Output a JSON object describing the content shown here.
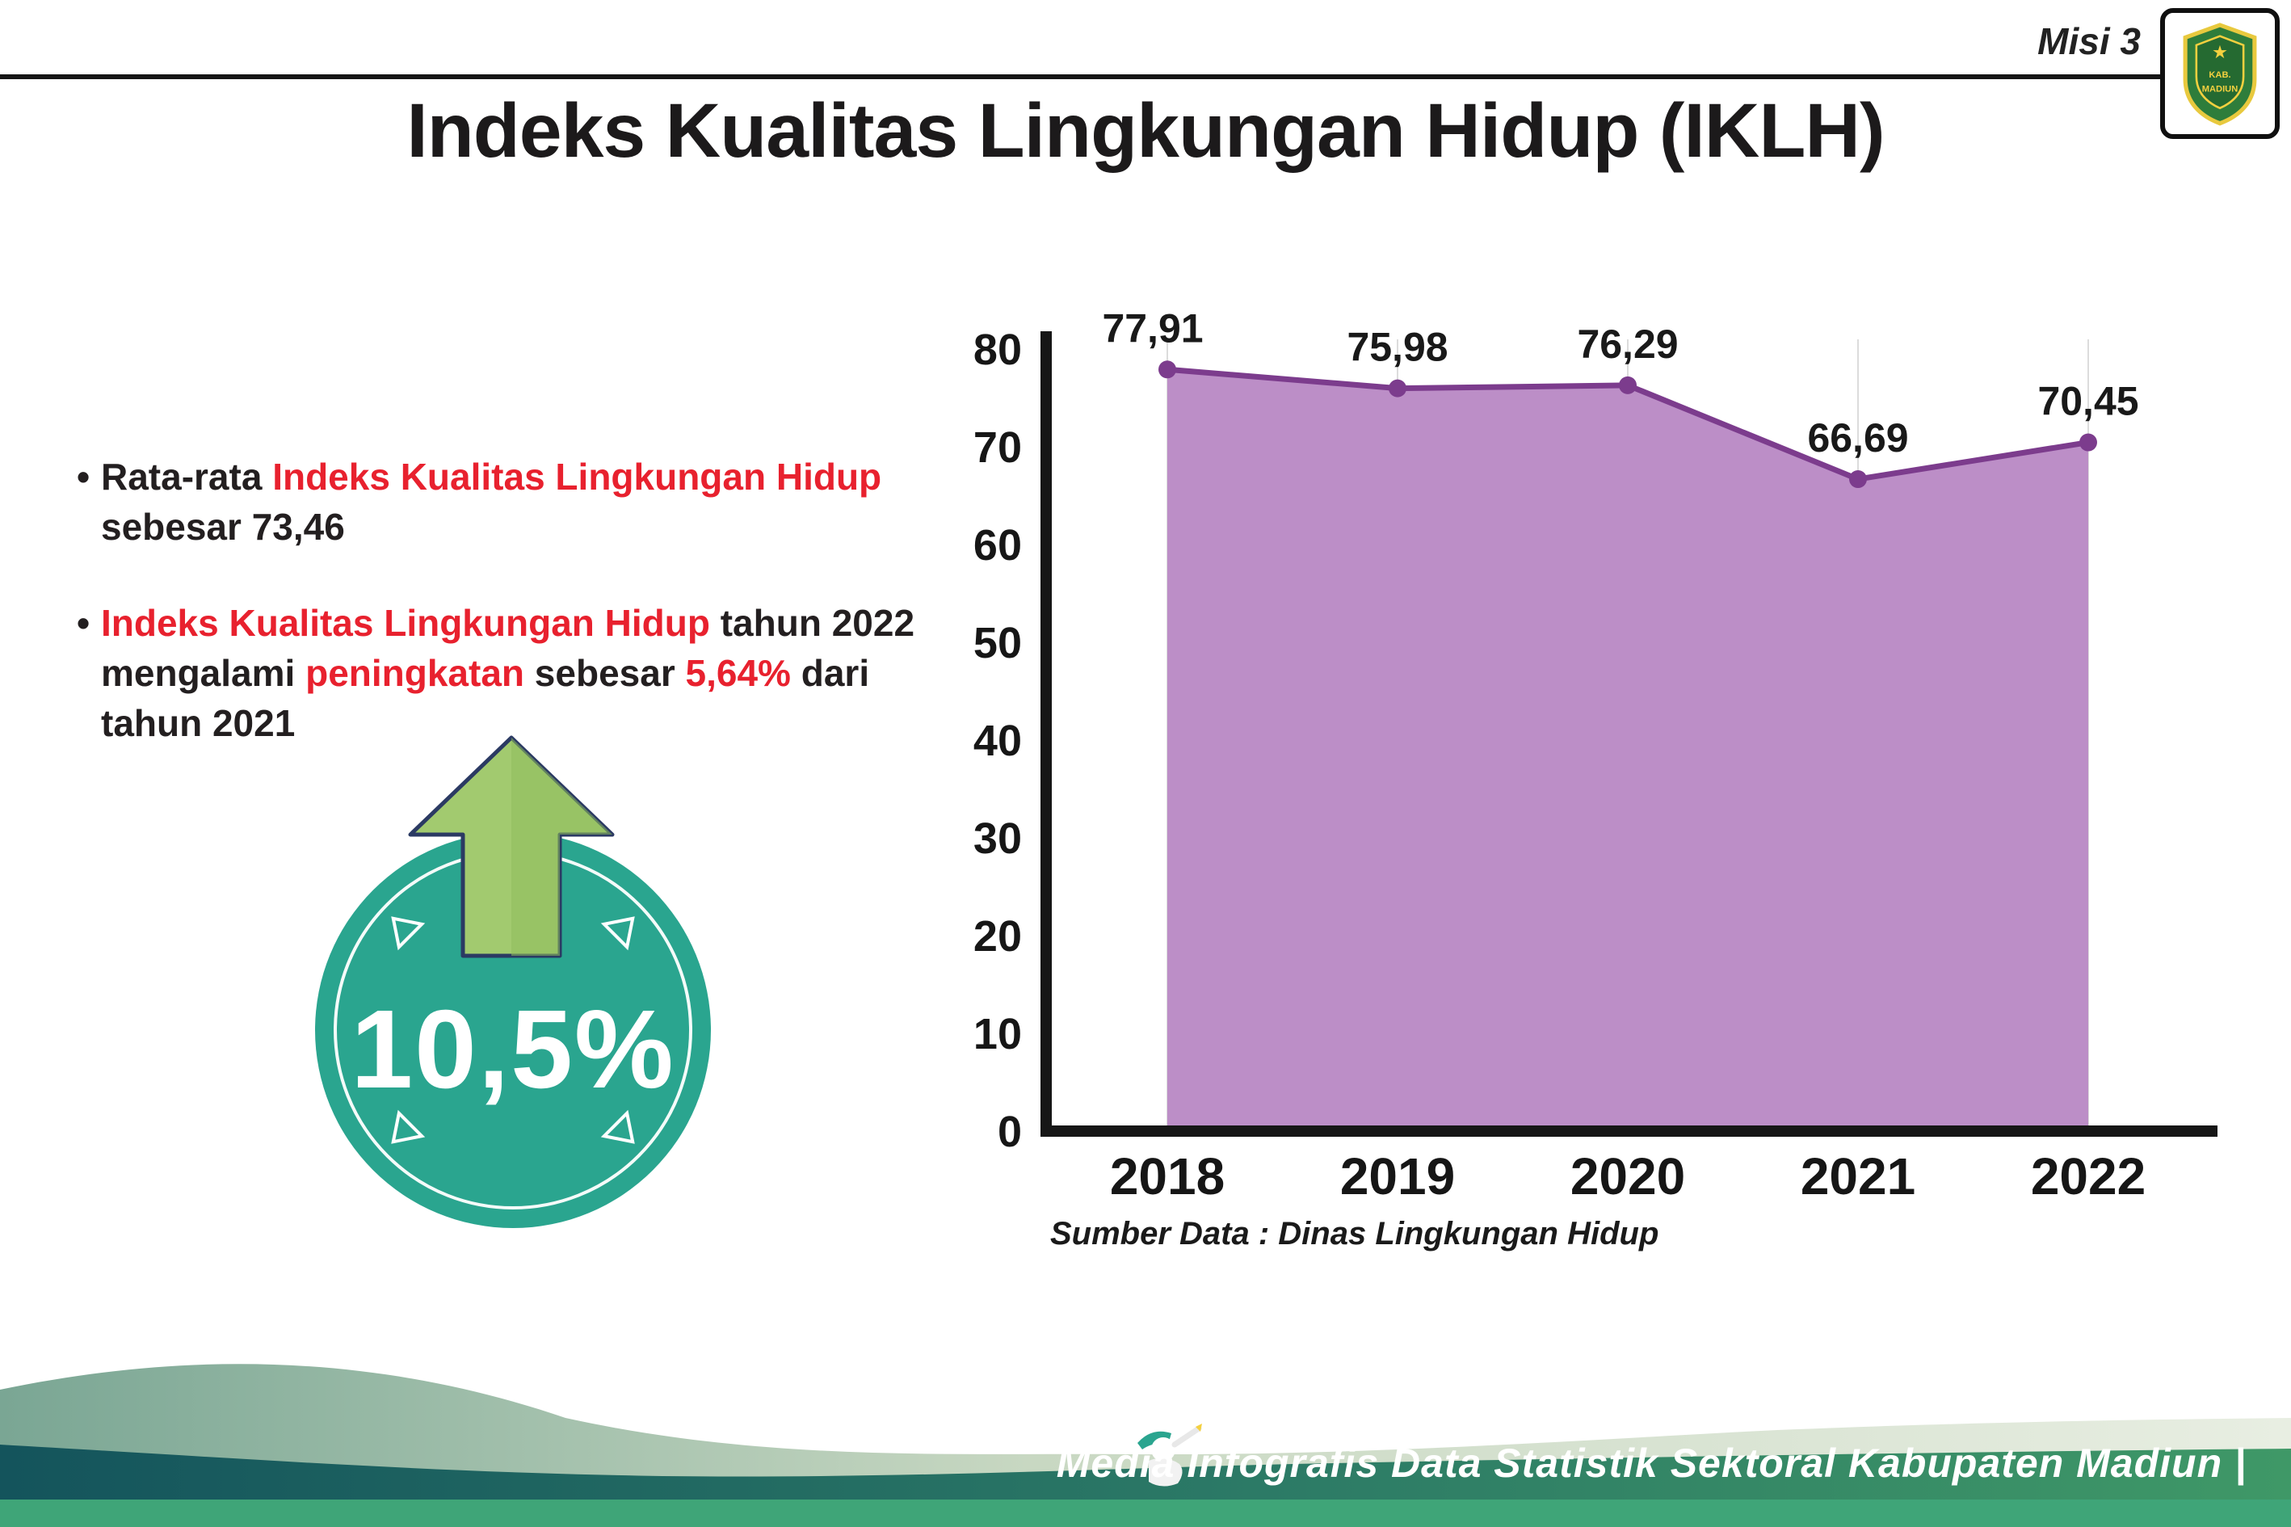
{
  "header": {
    "misi": "Misi 3",
    "title": "Indeks Kualitas Lingkungan Hidup (IKLH)",
    "logo_top_text": "KABUPATEN",
    "logo_bottom_text": "MADIUN"
  },
  "bullets_meta": {
    "marker": "•"
  },
  "bullets": [
    {
      "segments": [
        {
          "t": "Rata-rata ",
          "c": "dark"
        },
        {
          "t": "Indeks Kualitas Lingkungan Hidup",
          "c": "red"
        },
        {
          "t": " sebesar 73,46",
          "c": "dark"
        }
      ]
    },
    {
      "segments": [
        {
          "t": "Indeks Kualitas Lingkungan Hidup",
          "c": "red"
        },
        {
          "t": " tahun 2022 mengalami ",
          "c": "dark"
        },
        {
          "t": "peningkatan",
          "c": "red"
        },
        {
          "t": " sebesar ",
          "c": "dark"
        },
        {
          "t": "5,64%",
          "c": "red"
        },
        {
          "t": " dari tahun 2021",
          "c": "dark"
        }
      ]
    }
  ],
  "badge": {
    "value": "10,5%"
  },
  "chart_data": {
    "type": "area",
    "title": "",
    "categories": [
      "2018",
      "2019",
      "2020",
      "2021",
      "2022"
    ],
    "values": [
      77.91,
      75.98,
      76.29,
      66.69,
      70.45
    ],
    "value_labels": [
      "77,91",
      "75,98",
      "76,29",
      "66,69",
      "70,45"
    ],
    "ylim": [
      0,
      80
    ],
    "yticks": [
      0,
      10,
      20,
      30,
      40,
      50,
      60,
      70,
      80
    ],
    "grid": true,
    "legend": "none",
    "source": "Sumber Data : Dinas Lingkungan Hidup",
    "fill_color": "#bc8ec7",
    "line_color": "#7c3c8d"
  },
  "footer": {
    "credit": "Media Infografis Data Statistik Sektoral Kabupaten Madiun |"
  },
  "colors": {
    "dark": "#231f20",
    "red": "#e8212e",
    "teal": "#2aa58f",
    "arrow_green": "#a2ca6f",
    "arrow_outline": "#2b3a63",
    "footer_strip": "#3fa578",
    "footer_dark_1": "#14545c",
    "footer_dark_2": "#3f9867",
    "footer_light_1": "#7aa694",
    "footer_light_2": "#e8eee2"
  }
}
